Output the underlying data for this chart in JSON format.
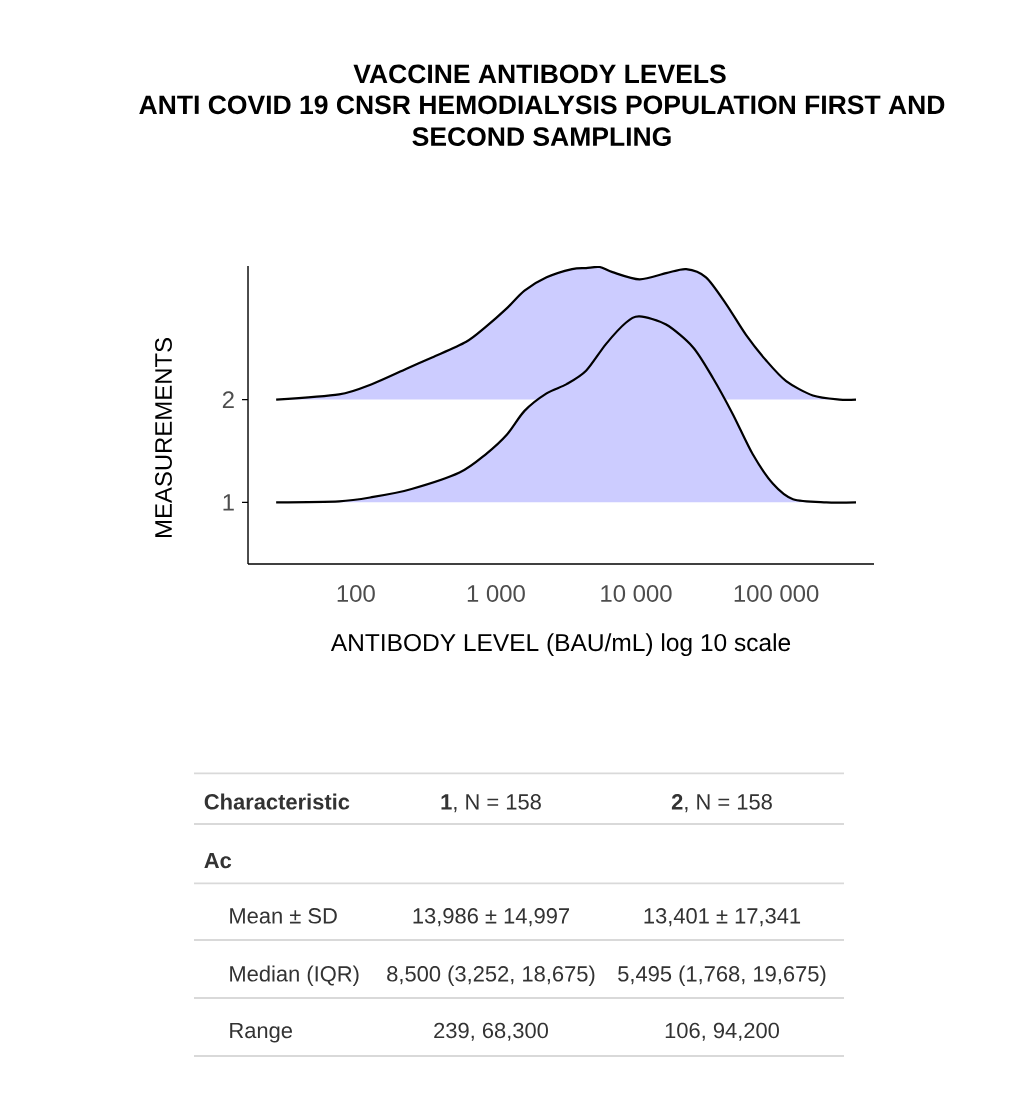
{
  "chart_data": {
    "type": "area",
    "title": "VACCINE ANTIBODY LEVELS",
    "subtitle": "ANTI COVID 19 CNSR HEMODIALYSIS POPULATION FIRST AND SECOND SAMPLING",
    "xlabel": "ANTIBODY LEVEL (BAU/mL) log 10 scale",
    "ylabel": "MEASUREMENTS",
    "log": "x",
    "xlim": [
      17,
      500000
    ],
    "xticks": [
      100,
      {
        "value": 1000,
        "label": "1 000"
      },
      {
        "value": 10000,
        "label": "10 000"
      },
      {
        "value": 100000,
        "label": "100 000"
      }
    ],
    "ylim": [
      0.4,
      3.3
    ],
    "yticks": [
      1,
      2
    ],
    "series": [
      {
        "color": "#ccccff",
        "x": [
          27,
          76,
          130,
          230,
          350,
          610,
          850,
          1200,
          1600,
          2300,
          3500,
          4400,
          5500,
          6800,
          10600,
          16400,
          22800,
          31600,
          44000,
          61000,
          85000,
          118000,
          183000,
          284000,
          372000
        ],
        "values": [
          2.0,
          2.05,
          2.15,
          2.3,
          2.41,
          2.56,
          2.71,
          2.89,
          3.06,
          3.19,
          3.27,
          3.28,
          3.29,
          3.24,
          3.17,
          3.23,
          3.27,
          3.19,
          2.93,
          2.63,
          2.38,
          2.18,
          2.04,
          2.0,
          2.0
        ]
      },
      {
        "color": "#ccccff",
        "x": [
          27,
          76,
          130,
          250,
          550,
          850,
          1200,
          1600,
          2300,
          3200,
          4400,
          6100,
          8500,
          10600,
          16400,
          25500,
          35400,
          49000,
          68000,
          95000,
          132000,
          228000,
          372000
        ],
        "values": [
          1.0,
          1.01,
          1.05,
          1.13,
          1.29,
          1.47,
          1.66,
          1.89,
          2.06,
          2.15,
          2.28,
          2.54,
          2.75,
          2.81,
          2.73,
          2.51,
          2.21,
          1.86,
          1.47,
          1.18,
          1.03,
          1.0,
          1.0
        ]
      }
    ],
    "annotations": [
      "Characteristic",
      "**1**, N = 158",
      "**2**, N = 158",
      "Ac",
      "Mean ± SD",
      "13,986 ± 14,997",
      "13,401 ± 17,341",
      "Median (IQR)",
      "8,500 (3,252, 18,675)",
      "5,495 (1,768, 19,675)",
      "Range",
      "239, 68,300",
      "106, 94,200"
    ]
  }
}
